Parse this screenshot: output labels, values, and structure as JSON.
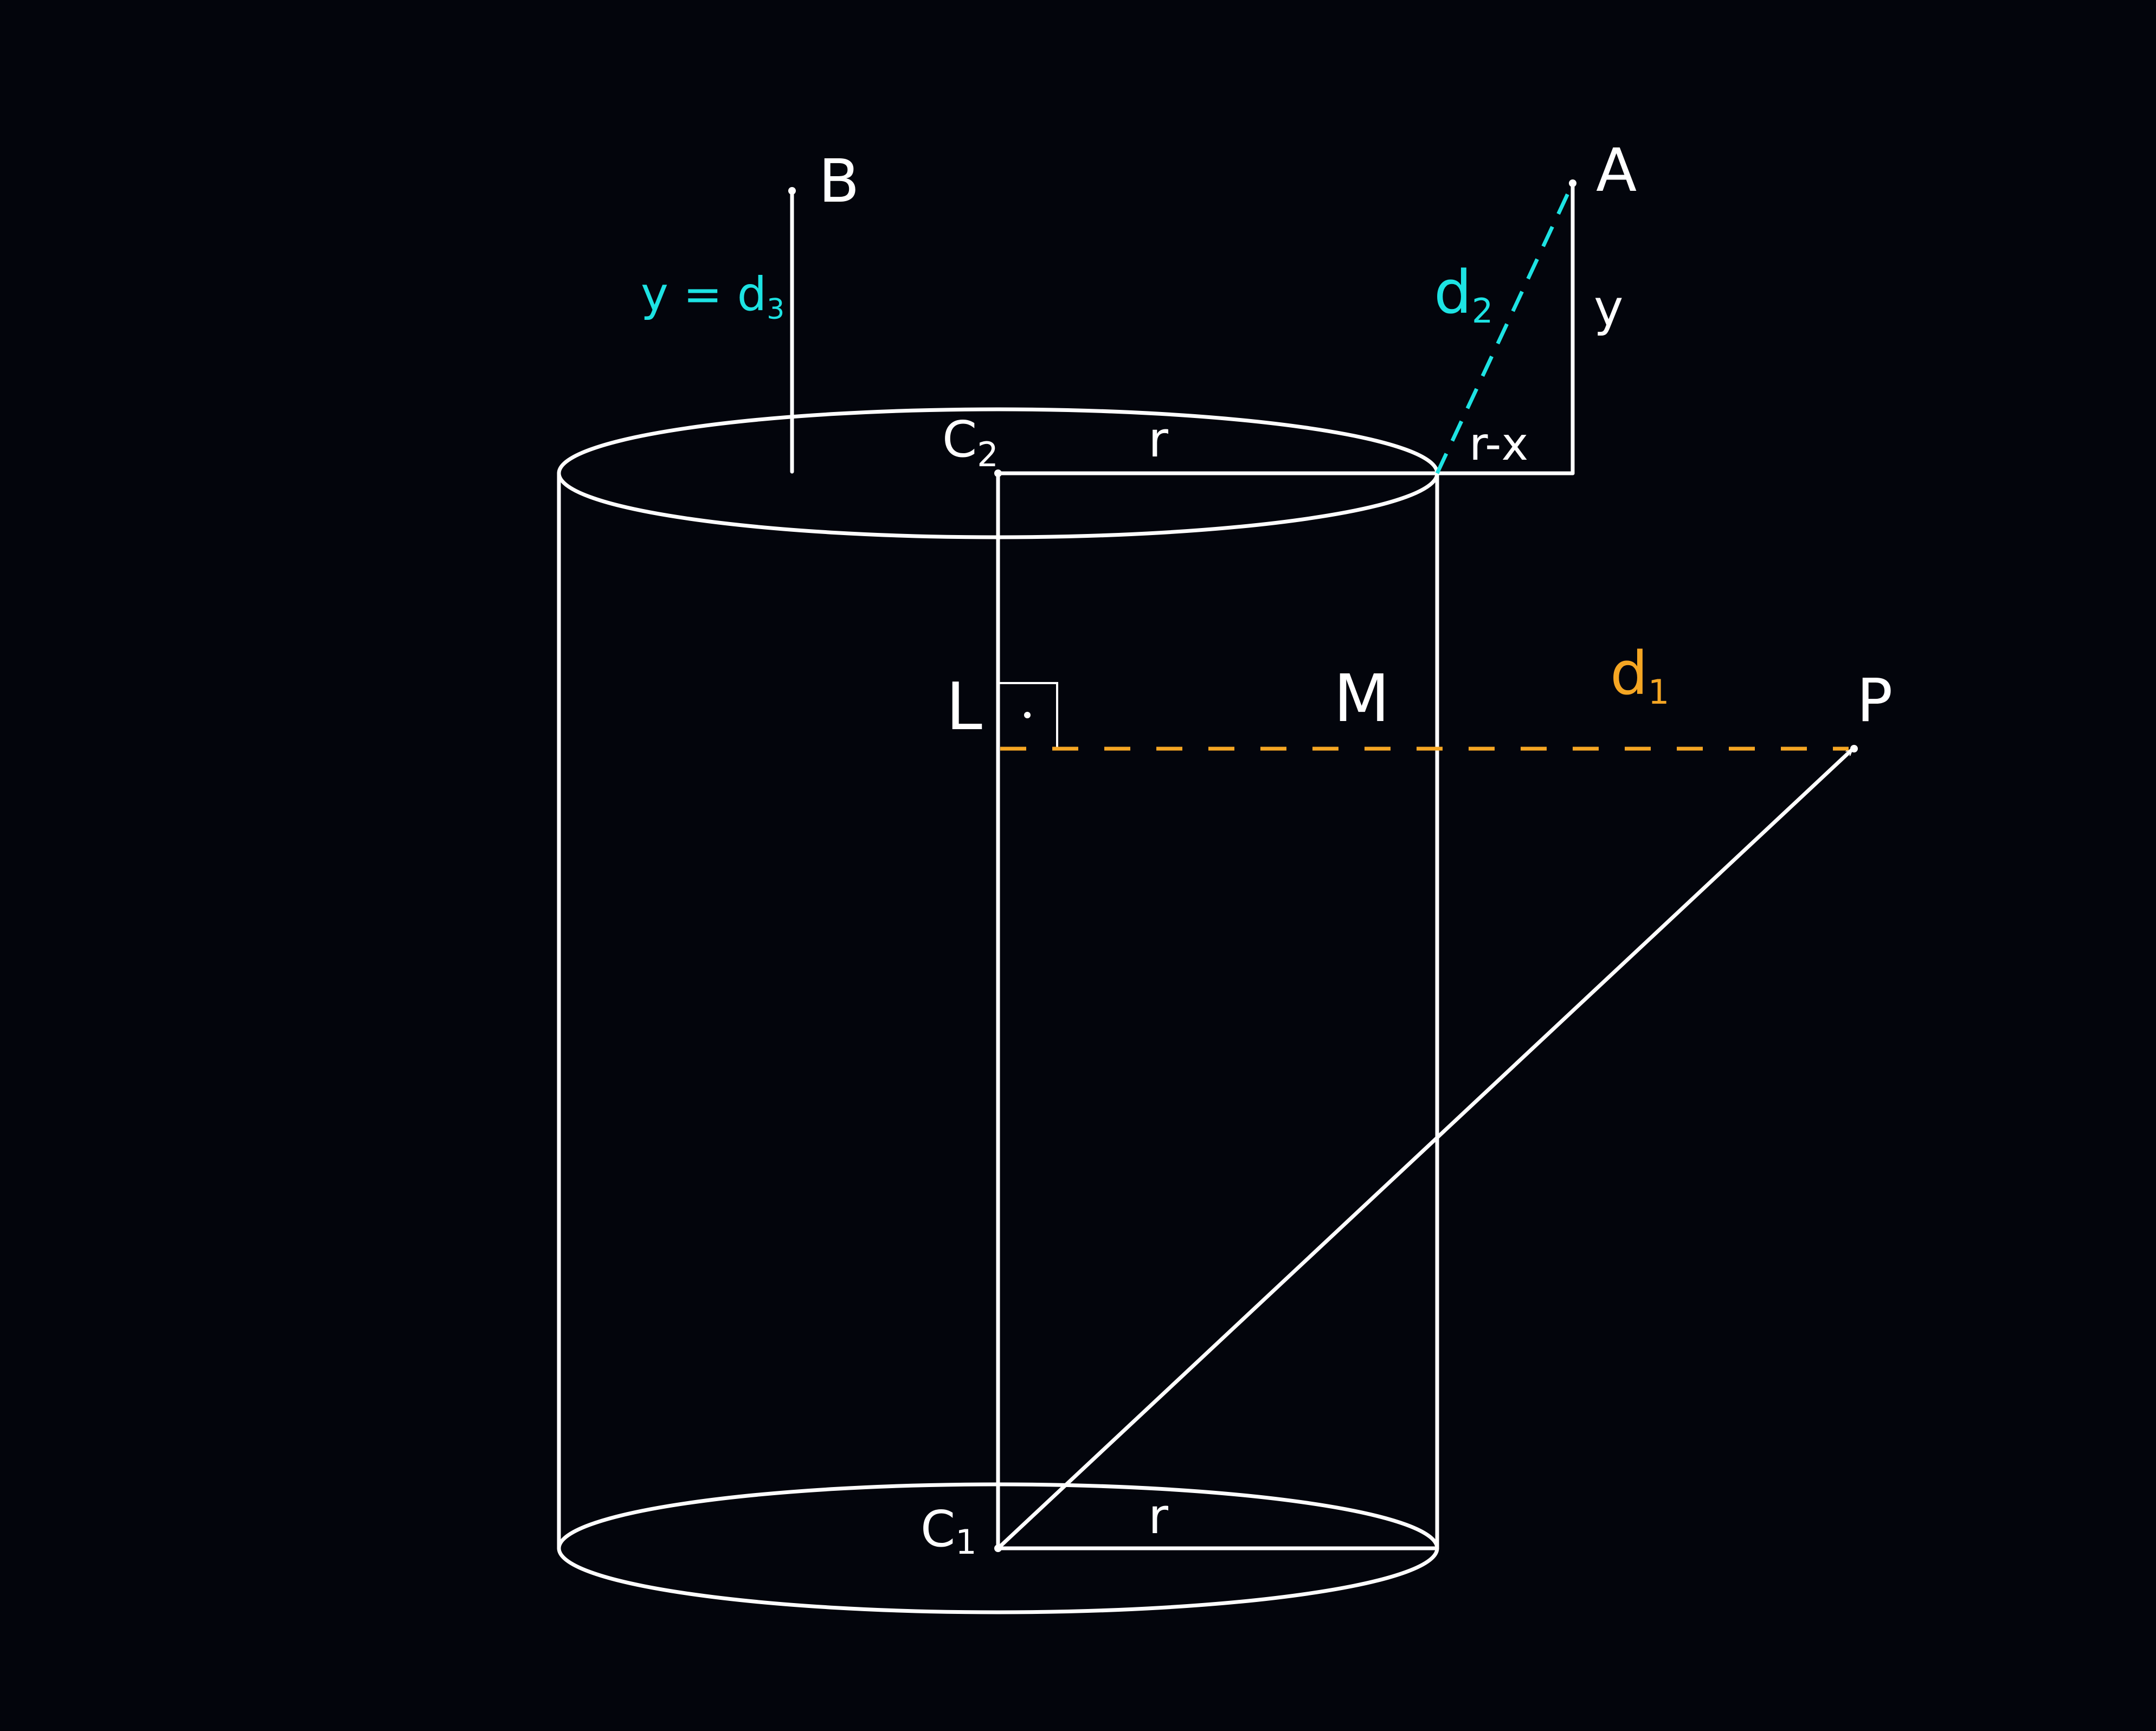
{
  "colors": {
    "background": "#03050c",
    "stroke": "#ffffff",
    "cyan": "#1de3e3",
    "orange": "#f5a623"
  },
  "labels": {
    "point_a": "A",
    "point_b": "B",
    "point_p": "P",
    "point_l": "L",
    "point_m": "M",
    "c2_main": "C",
    "c2_sub": "2",
    "c1_main": "C",
    "c1_sub": "1",
    "r_top": "r",
    "r_bottom": "r",
    "r_minus_x": "r-x",
    "y": "y",
    "y_eq": "y = d",
    "y_eq_sub": "3",
    "d2_main": "d",
    "d2_sub": "2",
    "d1_main": "d",
    "d1_sub": "1",
    "right_angle_dot": "·"
  }
}
